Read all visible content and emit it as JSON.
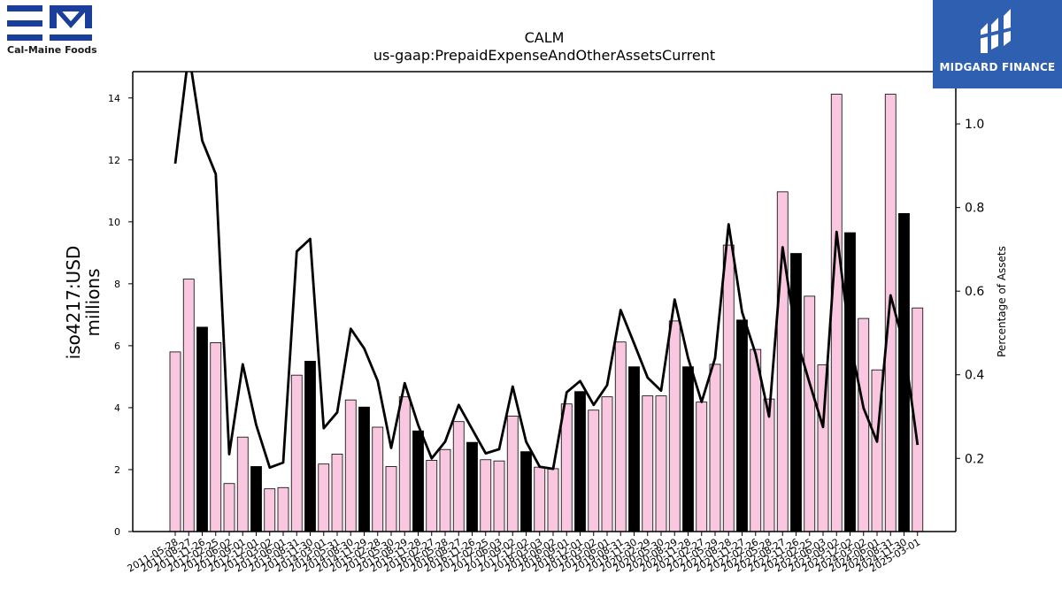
{
  "branding": {
    "left_logo_text": "Cal-Maine Foods",
    "right_logo_text": "MIDGARD FINANCE"
  },
  "chart_data": {
    "type": "bar",
    "title": "CALM",
    "subtitle": "us-gaap:PrepaidExpenseAndOtherAssetsCurrent",
    "ylabel": "iso4217:USD\nmillions",
    "y2label": "Percentage of Assets",
    "ylim": [
      0,
      14.85
    ],
    "y2lim": [
      0.025,
      1.125
    ],
    "yticks": [
      0,
      2,
      4,
      6,
      8,
      10,
      12,
      14
    ],
    "y2ticks": [
      0.2,
      0.4,
      0.6,
      0.8,
      1.0
    ],
    "y2ticklabels": [
      "0.2",
      "0.4",
      "0.6",
      "0.8",
      "1.0"
    ],
    "colors": {
      "quarter_bar": "#f9c8e0",
      "annual_bar": "#000000",
      "line": "#000000"
    },
    "categories": [
      "2011-05-28",
      "2011-08-27",
      "2011-11-26",
      "2012-02-25",
      "2012-06-02",
      "2012-09-01",
      "2012-12-01",
      "2013-03-02",
      "2013-06-01",
      "2013-08-31",
      "2013-11-30",
      "2014-03-01",
      "2014-05-31",
      "2014-08-30",
      "2014-11-29",
      "2015-02-28",
      "2015-05-30",
      "2015-08-29",
      "2015-11-28",
      "2016-02-27",
      "2016-05-28",
      "2016-08-27",
      "2016-11-26",
      "2017-02-25",
      "2017-06-03",
      "2017-09-02",
      "2017-12-02",
      "2018-03-03",
      "2018-06-02",
      "2018-09-01",
      "2018-12-01",
      "2019-03-02",
      "2019-06-01",
      "2019-08-31",
      "2019-11-30",
      "2020-02-29",
      "2020-05-30",
      "2020-08-29",
      "2020-11-28",
      "2021-02-27",
      "2021-05-29",
      "2021-08-28",
      "2021-11-27",
      "2022-02-26",
      "2022-05-28",
      "2022-08-27",
      "2022-11-26",
      "2023-02-25",
      "2023-06-03",
      "2023-09-02",
      "2023-12-02",
      "2024-03-02",
      "2024-06-01",
      "2024-08-31",
      "2024-11-30",
      "2025-03-01"
    ],
    "series": [
      {
        "values": [
          5.8,
          8.15,
          6.6,
          6.1,
          1.55,
          3.05,
          2.1,
          1.38,
          1.42,
          5.05,
          5.5,
          2.18,
          2.5,
          4.25,
          4.02,
          3.37,
          2.1,
          4.35,
          3.25,
          2.3,
          2.65,
          3.55,
          2.88,
          2.32,
          2.28,
          3.73,
          2.58,
          2.08,
          2.03,
          4.12,
          4.52,
          3.92,
          4.35,
          6.12,
          5.32,
          4.38,
          4.38,
          6.8,
          5.32,
          4.18,
          5.4,
          9.25,
          6.83,
          5.88,
          4.28,
          10.97,
          8.98,
          7.6,
          5.38,
          14.12,
          9.65,
          6.88,
          5.22,
          14.12,
          10.27,
          7.22
        ],
        "annual": [
          false,
          false,
          true,
          false,
          false,
          false,
          true,
          false,
          false,
          false,
          true,
          false,
          false,
          false,
          true,
          false,
          false,
          false,
          true,
          false,
          false,
          false,
          true,
          false,
          false,
          false,
          true,
          false,
          false,
          false,
          true,
          false,
          false,
          false,
          true,
          false,
          false,
          false,
          true,
          false,
          false,
          false,
          true,
          false,
          false,
          false,
          true,
          false,
          false,
          false,
          true,
          false,
          false,
          false,
          true,
          false
        ]
      },
      {
        "axis": "right",
        "type": "line",
        "values": [
          0.905,
          1.17,
          0.96,
          0.88,
          0.21,
          0.425,
          0.28,
          0.178,
          0.19,
          0.695,
          0.725,
          0.272,
          0.31,
          0.51,
          0.463,
          0.385,
          0.225,
          0.38,
          0.28,
          0.2,
          0.24,
          0.328,
          0.27,
          0.212,
          0.222,
          0.372,
          0.24,
          0.18,
          0.175,
          0.358,
          0.385,
          0.328,
          0.375,
          0.555,
          0.475,
          0.393,
          0.362,
          0.58,
          0.44,
          0.335,
          0.44,
          0.76,
          0.55,
          0.45,
          0.3,
          0.705,
          0.49,
          0.38,
          0.275,
          0.742,
          0.48,
          0.32,
          0.24,
          0.59,
          0.47,
          0.232
        ]
      }
    ]
  }
}
